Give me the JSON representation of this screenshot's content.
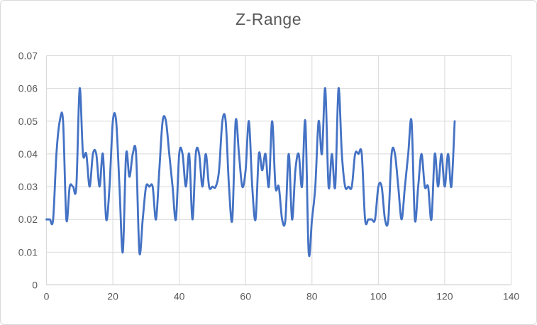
{
  "chart_data": {
    "type": "line",
    "title": "Z-Range",
    "xlabel": "",
    "ylabel": "",
    "x_start": 0,
    "x_step": 1,
    "values": [
      0.02,
      0.02,
      0.02,
      0.04,
      0.05,
      0.05,
      0.02,
      0.03,
      0.03,
      0.03,
      0.06,
      0.04,
      0.04,
      0.03,
      0.04,
      0.04,
      0.03,
      0.04,
      0.02,
      0.03,
      0.05,
      0.05,
      0.03,
      0.01,
      0.04,
      0.033,
      0.04,
      0.04,
      0.01,
      0.02,
      0.03,
      0.03,
      0.03,
      0.02,
      0.035,
      0.05,
      0.05,
      0.04,
      0.03,
      0.02,
      0.04,
      0.04,
      0.03,
      0.04,
      0.02,
      0.04,
      0.04,
      0.03,
      0.04,
      0.03,
      0.03,
      0.03,
      0.035,
      0.05,
      0.05,
      0.03,
      0.02,
      0.05,
      0.04,
      0.03,
      0.035,
      0.05,
      0.03,
      0.02,
      0.04,
      0.035,
      0.04,
      0.03,
      0.05,
      0.03,
      0.03,
      0.02,
      0.02,
      0.04,
      0.02,
      0.035,
      0.04,
      0.03,
      0.05,
      0.01,
      0.02,
      0.03,
      0.05,
      0.04,
      0.06,
      0.03,
      0.04,
      0.03,
      0.06,
      0.04,
      0.03,
      0.03,
      0.03,
      0.04,
      0.04,
      0.04,
      0.02,
      0.02,
      0.02,
      0.02,
      0.03,
      0.03,
      0.02,
      0.02,
      0.04,
      0.04,
      0.03,
      0.02,
      0.03,
      0.04,
      0.05,
      0.02,
      0.03,
      0.04,
      0.03,
      0.03,
      0.02,
      0.04,
      0.03,
      0.04,
      0.03,
      0.04,
      0.03,
      0.05
    ],
    "xlim": [
      0,
      140
    ],
    "ylim": [
      0,
      0.07
    ],
    "x_ticks": [
      0,
      20,
      40,
      60,
      80,
      100,
      120,
      140
    ],
    "x_tick_labels": [
      "0",
      "20",
      "40",
      "60",
      "80",
      "100",
      "120",
      "140"
    ],
    "y_ticks": [
      0,
      0.01,
      0.02,
      0.03,
      0.04,
      0.05,
      0.06,
      0.07
    ],
    "y_tick_labels": [
      "0",
      "0.01",
      "0.02",
      "0.03",
      "0.04",
      "0.05",
      "0.06",
      "0.07"
    ],
    "grid": true,
    "legend": "none",
    "smooth": true,
    "line_color": "#4472C4",
    "grid_color": "#D9D9D9",
    "axis_color": "#BFBFBF",
    "text_color": "#595959",
    "background": "#FFFFFF",
    "border_color": "#D9D9D9"
  }
}
